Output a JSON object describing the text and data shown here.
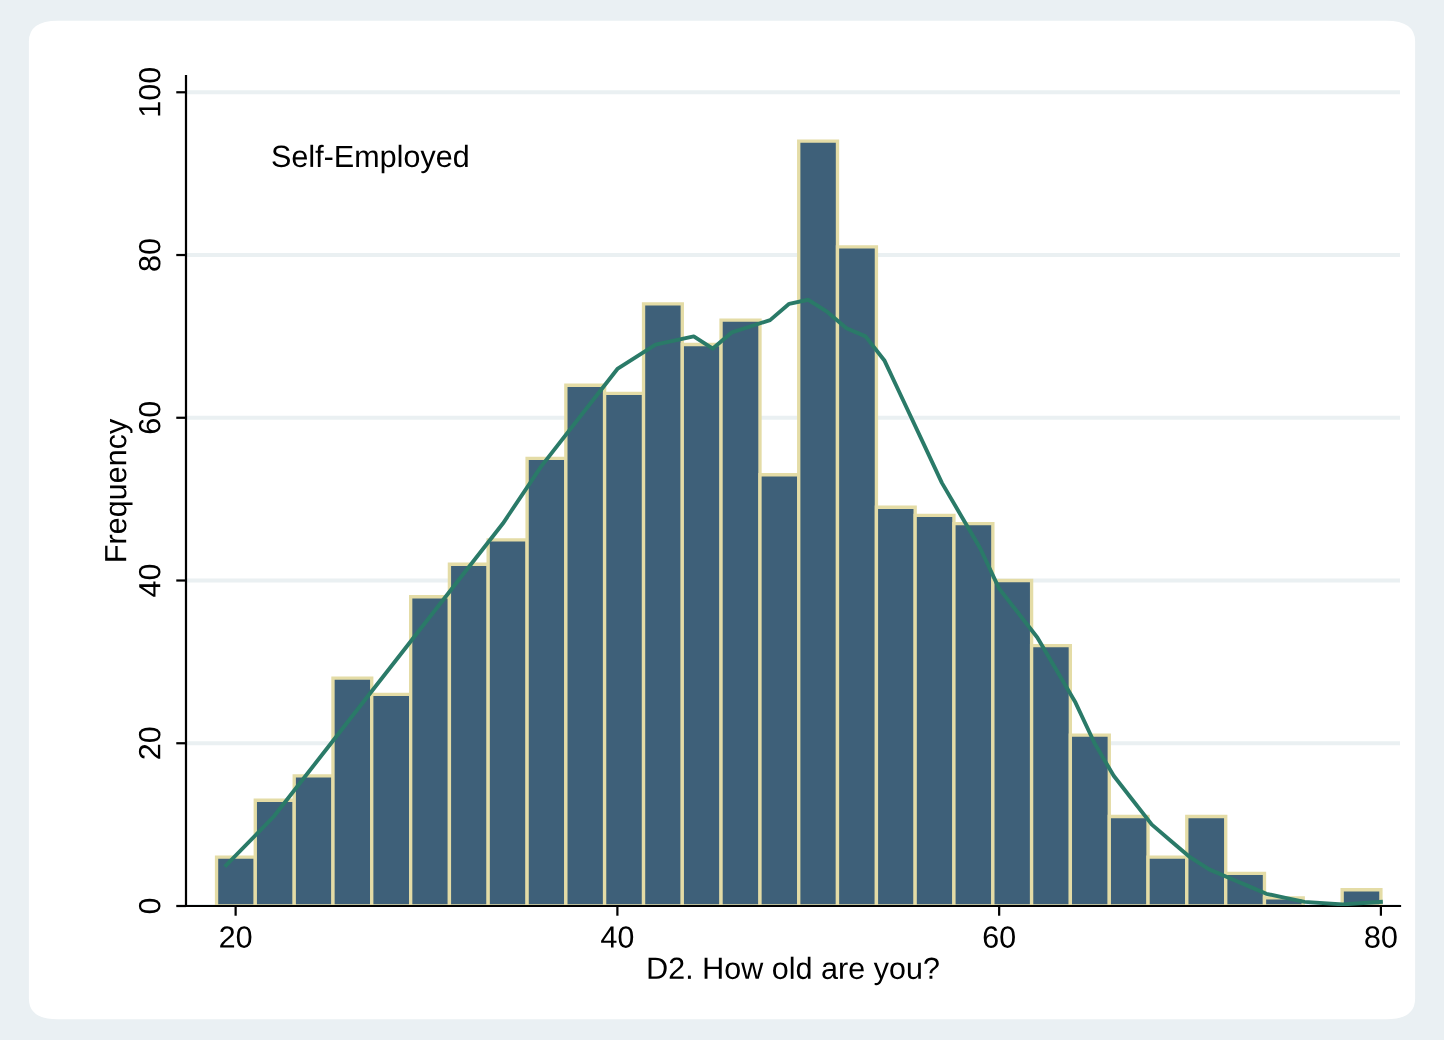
{
  "chart_data": {
    "type": "histogram",
    "annotations": [
      "Self-Employed"
    ],
    "xlabel": "D2. How old are you?",
    "ylabel": "Frequency",
    "bins": [
      19,
      21.03,
      23.07,
      25.1,
      27.13,
      29.17,
      31.2,
      33.23,
      35.27,
      37.3,
      39.33,
      41.37,
      43.4,
      45.43,
      47.47,
      49.5,
      51.53,
      53.57,
      55.6,
      57.63,
      59.67,
      61.7,
      63.73,
      65.77,
      67.8,
      69.83,
      71.87,
      73.9,
      75.93,
      77.97,
      80
    ],
    "series": [
      {
        "color": "#3e6079",
        "values": [
          6,
          13,
          16,
          28,
          26,
          38,
          42,
          45,
          55,
          64,
          63,
          74,
          69,
          72,
          53,
          94,
          81,
          49,
          48,
          47,
          40,
          32,
          21,
          11,
          6,
          11,
          4,
          1,
          0,
          2
        ]
      },
      {
        "type": "line",
        "color": "#2a7a68",
        "x": [
          19.5,
          22,
          25,
          28,
          31,
          34,
          36,
          38,
          40,
          42,
          44,
          45,
          46,
          48,
          49,
          50,
          51,
          52,
          53,
          54,
          55,
          56,
          57,
          58,
          59,
          60,
          61,
          62,
          63,
          64,
          65,
          66,
          67,
          68,
          69,
          70,
          71,
          72,
          73,
          74,
          75,
          76,
          78,
          80
        ],
        "values": [
          5,
          11,
          20,
          29,
          38,
          47,
          54,
          60,
          66,
          69,
          70,
          68.5,
          70.5,
          72,
          74,
          74.5,
          73,
          71,
          70,
          67,
          62,
          57,
          52,
          48,
          44,
          39,
          36,
          33,
          29,
          25,
          20,
          16,
          13,
          10,
          8,
          6,
          4.5,
          3.5,
          2.5,
          1.5,
          1,
          0.5,
          0.2,
          0.5
        ]
      }
    ],
    "xlim": [
      17.4,
      81
    ],
    "ylim": [
      0,
      102
    ],
    "xticks": [
      20,
      40,
      60,
      80
    ],
    "yticks": [
      0,
      20,
      40,
      60,
      80,
      100
    ],
    "grid": "y"
  }
}
